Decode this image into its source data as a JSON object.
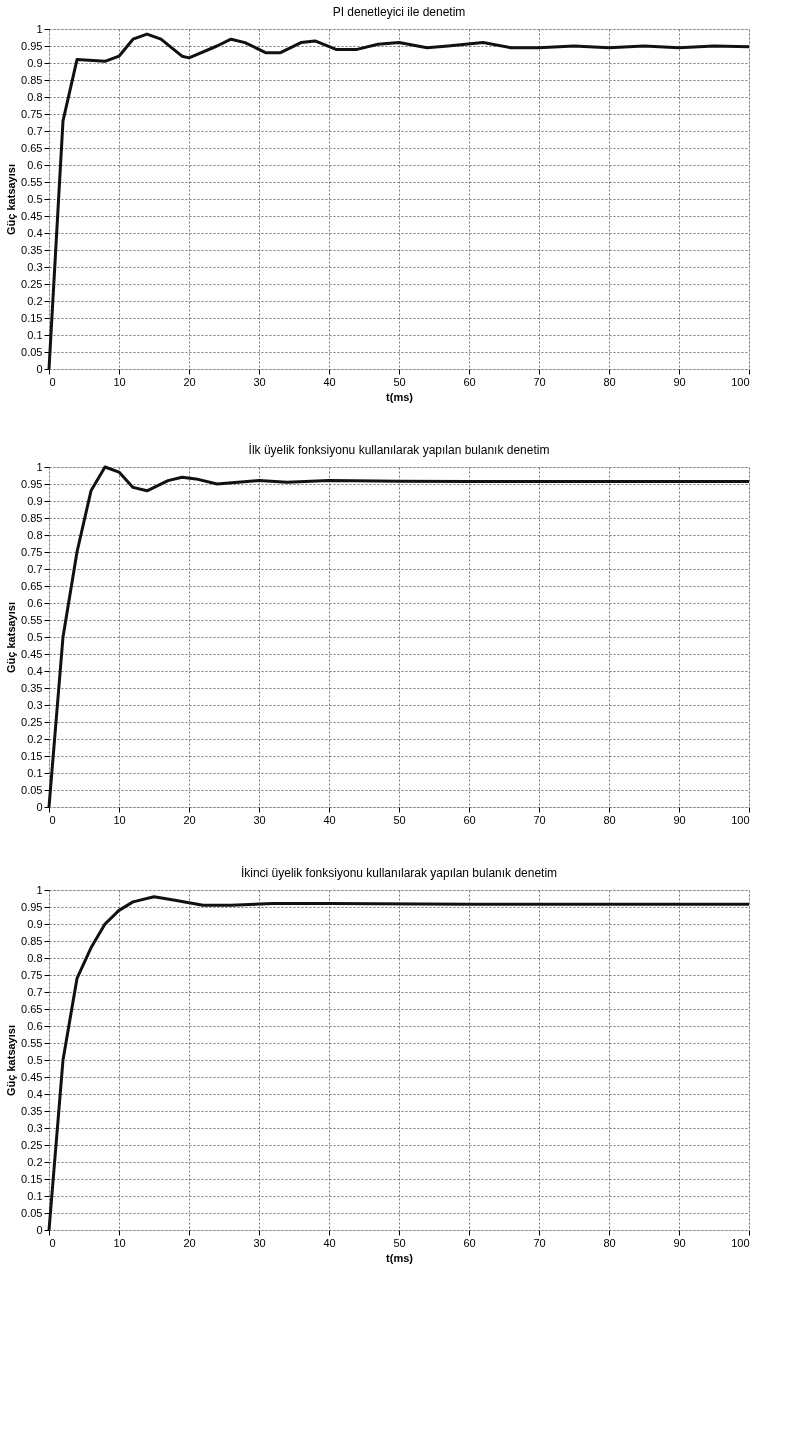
{
  "chart_data": [
    {
      "type": "line",
      "title": "PI denetleyici ile denetim",
      "xlabel": "t(ms)",
      "ylabel": "Güç katsayısı",
      "grid": true,
      "line_style": "solid",
      "marker": "none",
      "xlim": [
        0,
        100
      ],
      "xticks": [
        0,
        10,
        20,
        30,
        40,
        50,
        60,
        70,
        80,
        90,
        100
      ],
      "ylim": [
        0,
        1
      ],
      "yticks": [
        0,
        0.05,
        0.1,
        0.15,
        0.2,
        0.25,
        0.3,
        0.35,
        0.4,
        0.45,
        0.5,
        0.55,
        0.6,
        0.65,
        0.7,
        0.75,
        0.8,
        0.85,
        0.9,
        0.95,
        1
      ],
      "series": [
        {
          "color": "#111111",
          "x": [
            0,
            2,
            4,
            8,
            10,
            12,
            14,
            16,
            19,
            20,
            24,
            26,
            28,
            31,
            33,
            36,
            38,
            41,
            44,
            47,
            50,
            54,
            57,
            62,
            66,
            70,
            75,
            80,
            85,
            90,
            95,
            100
          ],
          "values": [
            0,
            0.73,
            0.91,
            0.905,
            0.92,
            0.97,
            0.985,
            0.97,
            0.92,
            0.915,
            0.95,
            0.97,
            0.96,
            0.93,
            0.93,
            0.96,
            0.965,
            0.94,
            0.94,
            0.955,
            0.96,
            0.945,
            0.95,
            0.96,
            0.945,
            0.945,
            0.95,
            0.945,
            0.95,
            0.945,
            0.95,
            0.948
          ]
        }
      ]
    },
    {
      "type": "line",
      "title": "İlk üyelik fonksiyonu kullanılarak yapılan bulanık denetim",
      "ylabel": "Güç katsayısı",
      "grid": true,
      "line_style": "solid",
      "marker": "none",
      "xlim": [
        0,
        100
      ],
      "xticks": [
        0,
        10,
        20,
        30,
        40,
        50,
        60,
        70,
        80,
        90,
        100
      ],
      "ylim": [
        0,
        1
      ],
      "yticks": [
        0,
        0.05,
        0.1,
        0.15,
        0.2,
        0.25,
        0.3,
        0.35,
        0.4,
        0.45,
        0.5,
        0.55,
        0.6,
        0.65,
        0.7,
        0.75,
        0.8,
        0.85,
        0.9,
        0.95,
        1
      ],
      "series": [
        {
          "color": "#111111",
          "x": [
            0,
            2,
            4,
            6,
            8,
            10,
            12,
            14,
            17,
            19,
            21,
            24,
            27,
            30,
            34,
            40,
            50,
            60,
            100
          ],
          "values": [
            0,
            0.5,
            0.75,
            0.93,
            1.0,
            0.985,
            0.94,
            0.93,
            0.96,
            0.97,
            0.965,
            0.95,
            0.955,
            0.96,
            0.955,
            0.96,
            0.958,
            0.957,
            0.957
          ]
        }
      ]
    },
    {
      "type": "line",
      "title": "İkinci üyelik fonksiyonu kullanılarak yapılan bulanık denetim",
      "xlabel": "t(ms)",
      "ylabel": "Güç katsayısı",
      "grid": true,
      "line_style": "solid",
      "marker": "none",
      "xlim": [
        0,
        100
      ],
      "xticks": [
        0,
        10,
        20,
        30,
        40,
        50,
        60,
        70,
        80,
        90,
        100
      ],
      "ylim": [
        0,
        1
      ],
      "yticks": [
        0,
        0.05,
        0.1,
        0.15,
        0.2,
        0.25,
        0.3,
        0.35,
        0.4,
        0.45,
        0.5,
        0.55,
        0.6,
        0.65,
        0.7,
        0.75,
        0.8,
        0.85,
        0.9,
        0.95,
        1
      ],
      "series": [
        {
          "color": "#111111",
          "x": [
            0,
            2,
            4,
            6,
            8,
            10,
            12,
            15,
            18,
            22,
            26,
            32,
            40,
            60,
            100
          ],
          "values": [
            0,
            0.5,
            0.74,
            0.83,
            0.9,
            0.94,
            0.965,
            0.98,
            0.97,
            0.955,
            0.955,
            0.96,
            0.96,
            0.958,
            0.958
          ]
        }
      ]
    }
  ]
}
